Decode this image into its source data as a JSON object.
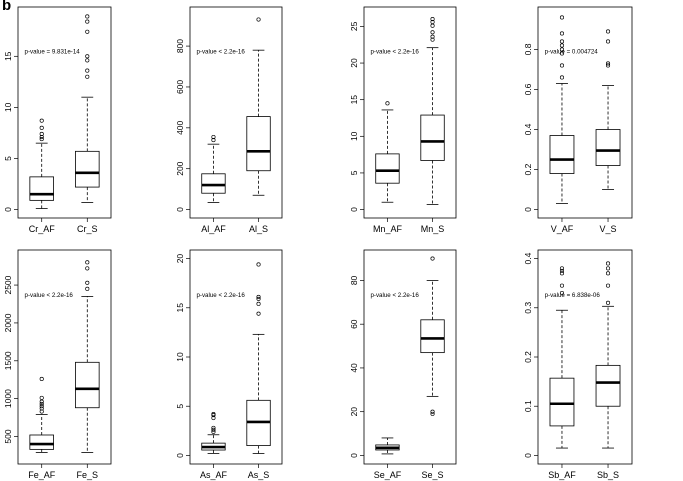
{
  "panel_label": "b",
  "chart_data": [
    {
      "type": "boxplot",
      "element": "Cr",
      "ylim": [
        0,
        19
      ],
      "yticks": [
        0,
        5,
        10,
        15
      ],
      "categories": [
        "Cr_AF",
        "Cr_S"
      ],
      "annotation": "p-value = 9.831e-14",
      "boxes": [
        {
          "name": "Cr_AF",
          "min": 0.1,
          "q1": 0.9,
          "median": 1.5,
          "q3": 3.2,
          "max": 6.5,
          "outliers": [
            6.9,
            7.1,
            7.4,
            8.0,
            8.7
          ]
        },
        {
          "name": "Cr_S",
          "min": 0.7,
          "q1": 2.2,
          "median": 3.6,
          "q3": 5.7,
          "max": 11.0,
          "outliers": [
            13.0,
            13.6,
            14.6,
            15.0,
            17.4,
            18.4,
            18.9
          ]
        }
      ]
    },
    {
      "type": "boxplot",
      "element": "Al",
      "ylim": [
        0,
        950
      ],
      "yticks": [
        0,
        200,
        400,
        600,
        800
      ],
      "categories": [
        "Al_AF",
        "Al_S"
      ],
      "annotation": "p-value < 2.2e-16",
      "boxes": [
        {
          "name": "Al_AF",
          "min": 35,
          "q1": 80,
          "median": 120,
          "q3": 175,
          "max": 320,
          "outliers": [
            340,
            355
          ]
        },
        {
          "name": "Al_S",
          "min": 70,
          "q1": 190,
          "median": 285,
          "q3": 455,
          "max": 780,
          "outliers": [
            930
          ]
        }
      ]
    },
    {
      "type": "boxplot",
      "element": "Mn",
      "ylim": [
        0,
        26.5
      ],
      "yticks": [
        0,
        5,
        10,
        15,
        20,
        25
      ],
      "categories": [
        "Mn_AF",
        "Mn_S"
      ],
      "annotation": "p-value < 2.2e-16",
      "boxes": [
        {
          "name": "Mn_AF",
          "min": 1.0,
          "q1": 3.6,
          "median": 5.3,
          "q3": 7.6,
          "max": 13.6,
          "outliers": [
            14.5
          ]
        },
        {
          "name": "Mn_S",
          "min": 0.7,
          "q1": 6.7,
          "median": 9.3,
          "q3": 12.9,
          "max": 22.1,
          "outliers": [
            23.2,
            23.6,
            24.2,
            25.1,
            25.6,
            26.0
          ]
        }
      ]
    },
    {
      "type": "boxplot",
      "element": "V",
      "ylim": [
        0,
        0.97
      ],
      "yticks": [
        0.0,
        0.2,
        0.4,
        0.6,
        0.8
      ],
      "categories": [
        "V_AF",
        "V_S"
      ],
      "annotation": "p-value = 0.004724",
      "boxes": [
        {
          "name": "V_AF",
          "min": 0.03,
          "q1": 0.18,
          "median": 0.25,
          "q3": 0.37,
          "max": 0.63,
          "outliers": [
            0.66,
            0.72,
            0.78,
            0.8,
            0.82,
            0.84,
            0.88,
            0.96
          ]
        },
        {
          "name": "V_S",
          "min": 0.1,
          "q1": 0.22,
          "median": 0.295,
          "q3": 0.4,
          "max": 0.62,
          "outliers": [
            0.72,
            0.73,
            0.84,
            0.89
          ]
        }
      ]
    },
    {
      "type": "boxplot",
      "element": "Fe",
      "ylim": [
        250,
        2850
      ],
      "yticks": [
        500,
        1000,
        1500,
        2000,
        2500
      ],
      "categories": [
        "Fe_AF",
        "Fe_S"
      ],
      "annotation": "p-value < 2.2e-16",
      "boxes": [
        {
          "name": "Fe_AF",
          "min": 290,
          "q1": 330,
          "median": 400,
          "q3": 520,
          "max": 790,
          "outliers": [
            830,
            870,
            900,
            930,
            960,
            1010,
            1260
          ]
        },
        {
          "name": "Fe_S",
          "min": 290,
          "q1": 880,
          "median": 1130,
          "q3": 1480,
          "max": 2350,
          "outliers": [
            2450,
            2530,
            2720,
            2800
          ]
        }
      ]
    },
    {
      "type": "boxplot",
      "element": "As",
      "ylim": [
        0,
        20
      ],
      "yticks": [
        0,
        5,
        10,
        15,
        20
      ],
      "categories": [
        "As_AF",
        "As_S"
      ],
      "annotation": "p-value < 2.2e-16",
      "boxes": [
        {
          "name": "As_AF",
          "min": 0.2,
          "q1": 0.55,
          "median": 0.85,
          "q3": 1.25,
          "max": 2.1,
          "outliers": [
            2.4,
            2.6,
            2.8,
            3.8,
            4.1,
            4.2
          ]
        },
        {
          "name": "As_S",
          "min": 0.2,
          "q1": 1.0,
          "median": 3.4,
          "q3": 5.6,
          "max": 12.3,
          "outliers": [
            14.4,
            15.4,
            15.9,
            16.1,
            19.4
          ]
        }
      ]
    },
    {
      "type": "boxplot",
      "element": "Se",
      "ylim": [
        0,
        90
      ],
      "yticks": [
        0,
        20,
        40,
        60,
        80
      ],
      "categories": [
        "Se_AF",
        "Se_S"
      ],
      "annotation": "p-value < 2.2e-16",
      "boxes": [
        {
          "name": "Se_AF",
          "min": 0.7,
          "q1": 2.5,
          "median": 3.5,
          "q3": 4.8,
          "max": 8.0,
          "outliers": []
        },
        {
          "name": "Se_S",
          "min": 27,
          "q1": 47,
          "median": 53.5,
          "q3": 62,
          "max": 80,
          "outliers": [
            19,
            20,
            90
          ]
        }
      ]
    },
    {
      "type": "boxplot",
      "element": "Sb",
      "ylim": [
        0,
        0.4
      ],
      "yticks": [
        0.0,
        0.1,
        0.2,
        0.3,
        0.4
      ],
      "categories": [
        "Sb_AF",
        "Sb_S"
      ],
      "annotation": "p-value = 6.838e-06",
      "boxes": [
        {
          "name": "Sb_AF",
          "min": 0.015,
          "q1": 0.06,
          "median": 0.105,
          "q3": 0.157,
          "max": 0.295,
          "outliers": [
            0.33,
            0.345,
            0.37,
            0.375,
            0.38
          ]
        },
        {
          "name": "Sb_S",
          "min": 0.015,
          "q1": 0.1,
          "median": 0.148,
          "q3": 0.183,
          "max": 0.303,
          "outliers": [
            0.31,
            0.345,
            0.37,
            0.38,
            0.39
          ]
        }
      ]
    }
  ]
}
